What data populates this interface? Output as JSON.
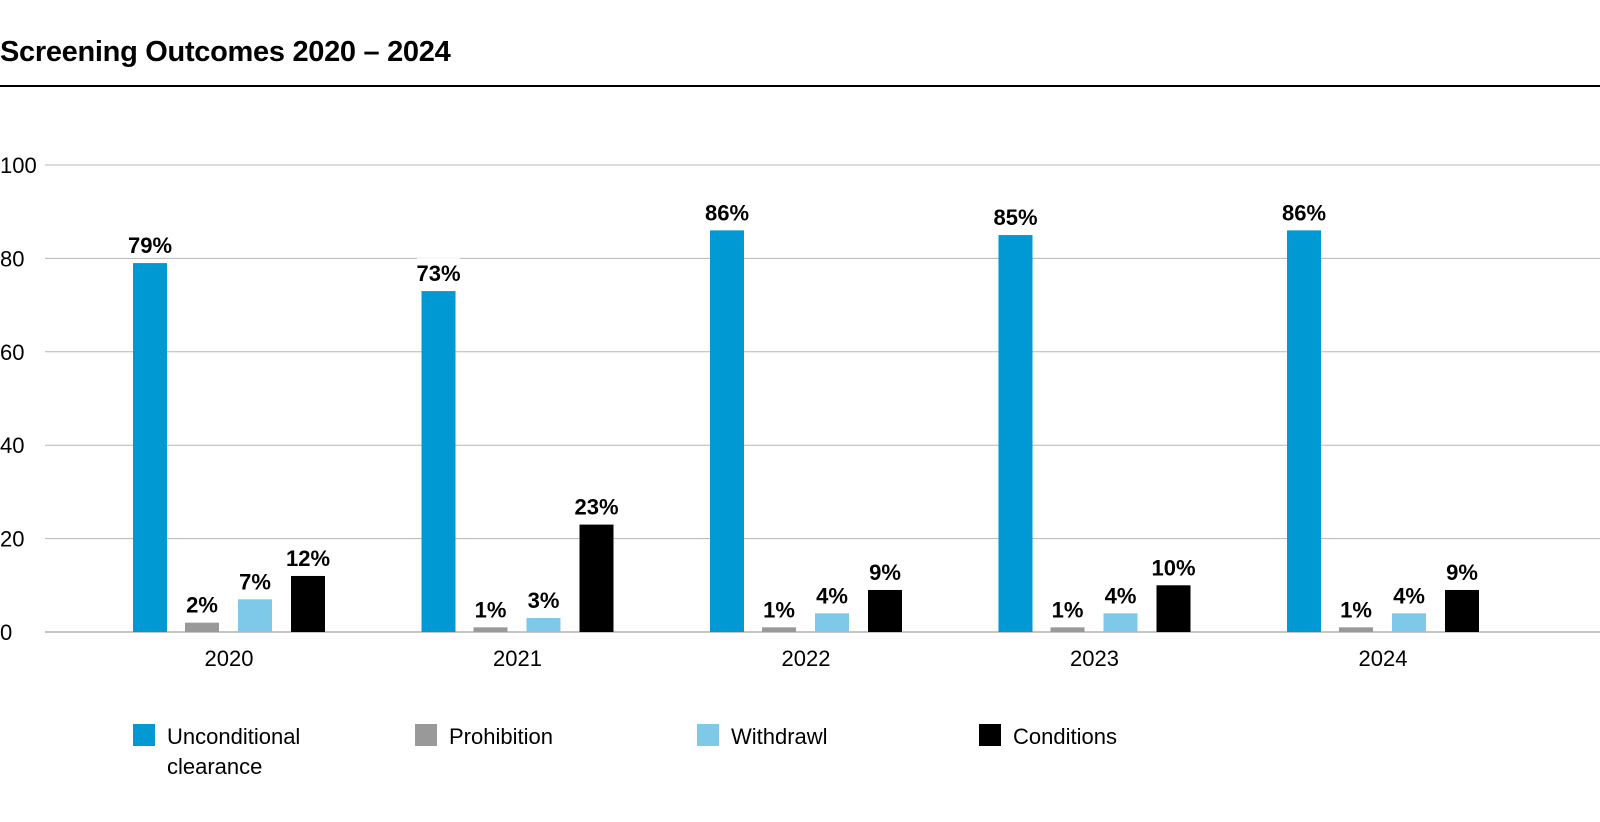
{
  "chart_data": {
    "type": "bar",
    "title": "Screening Outcomes 2020 – 2024",
    "categories": [
      "2020",
      "2021",
      "2022",
      "2023",
      "2024"
    ],
    "series": [
      {
        "name": "Unconditional clearance",
        "color": "#0099d4",
        "values": [
          79,
          73,
          86,
          85,
          86
        ],
        "labels": [
          "79%",
          "73%",
          "86%",
          "85%",
          "86%"
        ]
      },
      {
        "name": "Prohibition",
        "color": "#999999",
        "values": [
          2,
          1,
          1,
          1,
          1
        ],
        "labels": [
          "2%",
          "1%",
          "1%",
          "1%",
          "1%"
        ]
      },
      {
        "name": "Withdrawl",
        "color": "#7fc9e8",
        "values": [
          7,
          3,
          4,
          4,
          4
        ],
        "labels": [
          "7%",
          "3%",
          "4%",
          "4%",
          "4%"
        ]
      },
      {
        "name": "Conditions",
        "color": "#000000",
        "values": [
          12,
          23,
          9,
          10,
          9
        ],
        "labels": [
          "12%",
          "23%",
          "9%",
          "10%",
          "9%"
        ]
      }
    ],
    "yticks": [
      "0",
      "20",
      "40",
      "60",
      "80",
      "100"
    ],
    "ylim": [
      0,
      100
    ],
    "grid": true,
    "legend_position": "bottom-left",
    "xlabel": "",
    "ylabel": ""
  }
}
